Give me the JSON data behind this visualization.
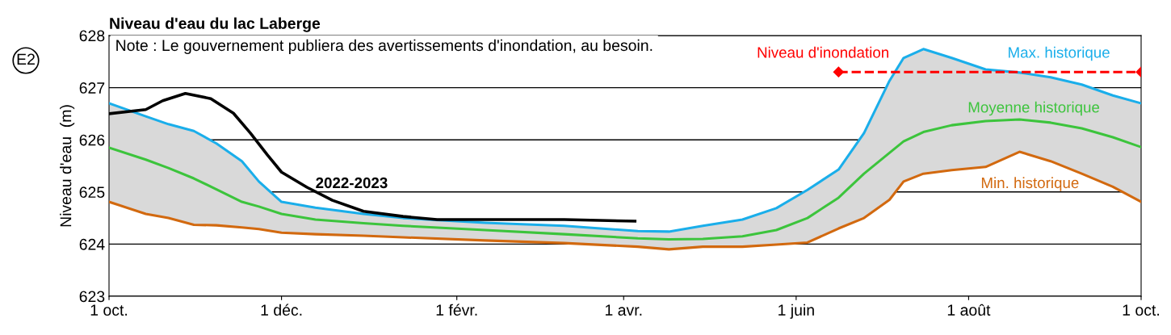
{
  "chart_data": {
    "type": "line",
    "title": "Niveau d'eau du lac Laberge",
    "ylabel": "Niveau d'eau  (m)",
    "annotations": [
      "E2",
      "Note : Le gouvernement publiera des avertissements d'inondation, au besoin."
    ],
    "xlim": [
      "2022-10-01",
      "2023-10-01"
    ],
    "xticks": [
      {
        "value": "2022-10-01",
        "label": "1 oct."
      },
      {
        "value": "2022-12-01",
        "label": "1 déc."
      },
      {
        "value": "2023-02-01",
        "label": "1 févr."
      },
      {
        "value": "2023-04-01",
        "label": "1 avr."
      },
      {
        "value": "2023-06-01",
        "label": "1 juin"
      },
      {
        "value": "2023-08-01",
        "label": "1 août"
      },
      {
        "value": "2023-10-01",
        "label": "1 oct."
      }
    ],
    "ylim": [
      623,
      628
    ],
    "yticks": [
      623,
      624,
      625,
      626,
      627,
      628
    ],
    "grid": "y",
    "legend": false,
    "line_style": "solid",
    "marker": "none",
    "series": [
      {
        "name": "Max. historique",
        "color": "#1aaeea",
        "x": [
          "2022-10-01",
          "2022-10-14",
          "2022-10-22",
          "2022-10-31",
          "2022-11-08",
          "2022-11-17",
          "2022-11-23",
          "2022-12-01",
          "2022-12-13",
          "2022-12-30",
          "2023-01-13",
          "2023-02-11",
          "2023-03-11",
          "2023-04-06",
          "2023-04-17",
          "2023-04-29",
          "2023-05-13",
          "2023-05-25",
          "2023-06-05",
          "2023-06-16",
          "2023-06-25",
          "2023-07-04",
          "2023-07-09",
          "2023-07-16",
          "2023-07-26",
          "2023-08-07",
          "2023-08-19",
          "2023-08-30",
          "2023-09-10",
          "2023-09-21",
          "2023-10-01"
        ],
        "values": [
          626.7,
          626.45,
          626.3,
          626.17,
          625.93,
          625.59,
          625.2,
          624.81,
          624.7,
          624.58,
          624.5,
          624.41,
          624.35,
          624.25,
          624.24,
          624.35,
          624.47,
          624.69,
          625.04,
          625.43,
          626.13,
          627.13,
          627.57,
          627.74,
          627.57,
          627.35,
          627.29,
          627.2,
          627.06,
          626.85,
          626.7
        ]
      },
      {
        "name": "Moyenne historique",
        "color": "#3cc43c",
        "x": [
          "2022-10-01",
          "2022-10-14",
          "2022-10-22",
          "2022-10-31",
          "2022-11-08",
          "2022-11-17",
          "2022-11-23",
          "2022-12-01",
          "2022-12-13",
          "2022-12-30",
          "2023-01-13",
          "2023-02-11",
          "2023-03-11",
          "2023-04-06",
          "2023-04-17",
          "2023-04-29",
          "2023-05-13",
          "2023-05-25",
          "2023-06-05",
          "2023-06-16",
          "2023-06-25",
          "2023-07-04",
          "2023-07-09",
          "2023-07-16",
          "2023-07-26",
          "2023-08-07",
          "2023-08-19",
          "2023-08-30",
          "2023-09-10",
          "2023-09-21",
          "2023-10-01"
        ],
        "values": [
          625.85,
          625.62,
          625.46,
          625.26,
          625.05,
          624.81,
          624.72,
          624.58,
          624.47,
          624.4,
          624.35,
          624.27,
          624.19,
          624.11,
          624.09,
          624.1,
          624.15,
          624.27,
          624.5,
          624.89,
          625.35,
          625.75,
          625.97,
          626.15,
          626.28,
          626.36,
          626.39,
          626.33,
          626.22,
          626.05,
          625.86
        ],
        "lower": [
          624.81,
          624.58,
          624.5,
          624.37,
          624.36,
          624.32,
          624.29,
          624.22,
          624.19,
          624.16,
          624.13,
          624.07,
          624.02,
          623.95,
          623.9,
          623.95,
          623.95,
          623.99,
          624.03,
          624.3,
          624.5,
          624.85,
          625.2,
          625.35,
          625.42,
          625.48,
          625.77,
          625.59,
          625.35,
          625.1,
          624.81
        ],
        "upper": [
          626.7,
          626.45,
          626.3,
          626.17,
          625.93,
          625.59,
          625.2,
          624.81,
          624.7,
          624.58,
          624.5,
          624.41,
          624.35,
          624.25,
          624.24,
          624.35,
          624.47,
          624.69,
          625.04,
          625.43,
          626.13,
          627.13,
          627.57,
          627.74,
          627.57,
          627.35,
          627.29,
          627.2,
          627.06,
          626.85,
          626.7
        ]
      },
      {
        "name": "Min. historique",
        "color": "#d2690f",
        "x": [
          "2022-10-01",
          "2022-10-14",
          "2022-10-22",
          "2022-10-31",
          "2022-11-08",
          "2022-11-17",
          "2022-11-23",
          "2022-12-01",
          "2022-12-13",
          "2022-12-30",
          "2023-01-13",
          "2023-02-11",
          "2023-03-11",
          "2023-04-06",
          "2023-04-17",
          "2023-04-29",
          "2023-05-13",
          "2023-05-25",
          "2023-06-05",
          "2023-06-16",
          "2023-06-25",
          "2023-07-04",
          "2023-07-09",
          "2023-07-16",
          "2023-07-26",
          "2023-08-07",
          "2023-08-19",
          "2023-08-30",
          "2023-09-10",
          "2023-09-21",
          "2023-10-01"
        ],
        "values": [
          624.81,
          624.58,
          624.5,
          624.37,
          624.36,
          624.32,
          624.29,
          624.22,
          624.19,
          624.16,
          624.13,
          624.07,
          624.02,
          623.95,
          623.9,
          623.95,
          623.95,
          623.99,
          624.03,
          624.3,
          624.5,
          624.85,
          625.2,
          625.35,
          625.42,
          625.48,
          625.77,
          625.59,
          625.35,
          625.1,
          624.81
        ]
      },
      {
        "name": "2022-2023",
        "color": "#000000",
        "x": [
          "2022-10-01",
          "2022-10-14",
          "2022-10-20",
          "2022-10-28",
          "2022-11-06",
          "2022-11-14",
          "2022-11-20",
          "2022-11-26",
          "2022-12-01",
          "2022-12-10",
          "2022-12-19",
          "2022-12-30",
          "2023-01-13",
          "2023-01-25",
          "2023-02-11",
          "2023-03-11",
          "2023-04-05"
        ],
        "values": [
          626.5,
          626.58,
          626.75,
          626.89,
          626.79,
          626.51,
          626.13,
          625.71,
          625.38,
          625.09,
          624.84,
          624.63,
          624.53,
          624.47,
          624.47,
          624.47,
          624.44
        ]
      },
      {
        "name": "Niveau d'inondation",
        "color": "#ff0000",
        "x": [
          "2023-06-16",
          "2023-10-01"
        ],
        "values": [
          627.3,
          627.3
        ],
        "line_style": "dashed",
        "marker": "diamond"
      }
    ]
  }
}
